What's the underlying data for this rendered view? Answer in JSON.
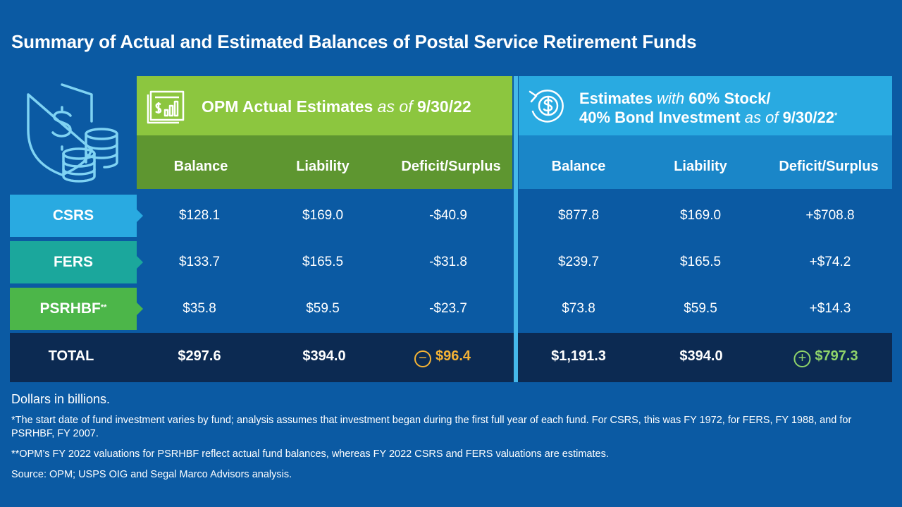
{
  "title": "Summary of Actual and Estimated Balances of Postal Service Retirement Funds",
  "icons": {
    "main": "shield-dollar-coins-icon",
    "opm": "financial-report-chart-icon",
    "estimates": "dollar-cycle-arrows-icon"
  },
  "colors": {
    "background": "#0b5aa3",
    "opm_header": "#8cc63f",
    "opm_subheader": "#5e9630",
    "estimates_header": "#29aae1",
    "estimates_subheader": "#1a86c8",
    "csrs": "#29aae1",
    "fers": "#1ba79c",
    "psrhbf": "#4cb649",
    "total_bar": "#0c2a52",
    "deficit": "#f5b335",
    "surplus": "#8fd36a"
  },
  "chart_data": {
    "type": "table",
    "title": "Summary of Actual and Estimated Balances of Postal Service Retirement Funds",
    "groups": [
      {
        "main": "OPM Actual Estimates",
        "qualifier": "as of",
        "date": "9/30/22"
      },
      {
        "line1_main": "Estimates",
        "line1_qualifier": "with",
        "line1_rest": "60% Stock/",
        "line2_main": "40% Bond Investment",
        "line2_qualifier": "as of",
        "line2_date": "9/30/22",
        "marker": "*"
      }
    ],
    "columns": [
      "Balance",
      "Liability",
      "Deficit/Surplus",
      "Balance",
      "Liability",
      "Deficit/Surplus"
    ],
    "rows": [
      {
        "fund": "CSRS",
        "marker": "",
        "values": [
          "$128.1",
          "$169.0",
          "-$40.9",
          "$877.8",
          "$169.0",
          "+$708.8"
        ]
      },
      {
        "fund": "FERS",
        "marker": "",
        "values": [
          "$133.7",
          "$165.5",
          "-$31.8",
          "$239.7",
          "$165.5",
          "+$74.2"
        ]
      },
      {
        "fund": "PSRHBF",
        "marker": "**",
        "values": [
          "$35.8",
          "$59.5",
          "-$23.7",
          "$73.8",
          "$59.5",
          "+$14.3"
        ]
      }
    ],
    "total": {
      "label": "TOTAL",
      "values": [
        "$297.6",
        "$394.0",
        "$96.4",
        "$1,191.3",
        "$394.0",
        "$797.3"
      ],
      "deficit_symbol": "−",
      "surplus_symbol": "+"
    },
    "numeric": {
      "opm": {
        "balance": [
          128.1,
          133.7,
          35.8
        ],
        "liability": [
          169.0,
          165.5,
          59.5
        ],
        "deficit_surplus": [
          -40.9,
          -31.8,
          -23.7
        ]
      },
      "estimates": {
        "balance": [
          877.8,
          239.7,
          73.8
        ],
        "liability": [
          169.0,
          165.5,
          59.5
        ],
        "deficit_surplus": [
          708.8,
          74.2,
          14.3
        ]
      }
    }
  },
  "notes": {
    "units": "Dollars in billions.",
    "note1": "*The start date of fund investment varies by fund; analysis assumes that investment began during the first full year of each fund. For CSRS, this was FY 1972, for FERS, FY 1988, and for PSRHBF, FY 2007.",
    "note2": "**OPM’s FY 2022 valuations for PSRHBF reflect actual fund balances, whereas FY 2022 CSRS and FERS valuations are estimates.",
    "source": "Source: OPM; USPS OIG and Segal Marco Advisors analysis."
  }
}
